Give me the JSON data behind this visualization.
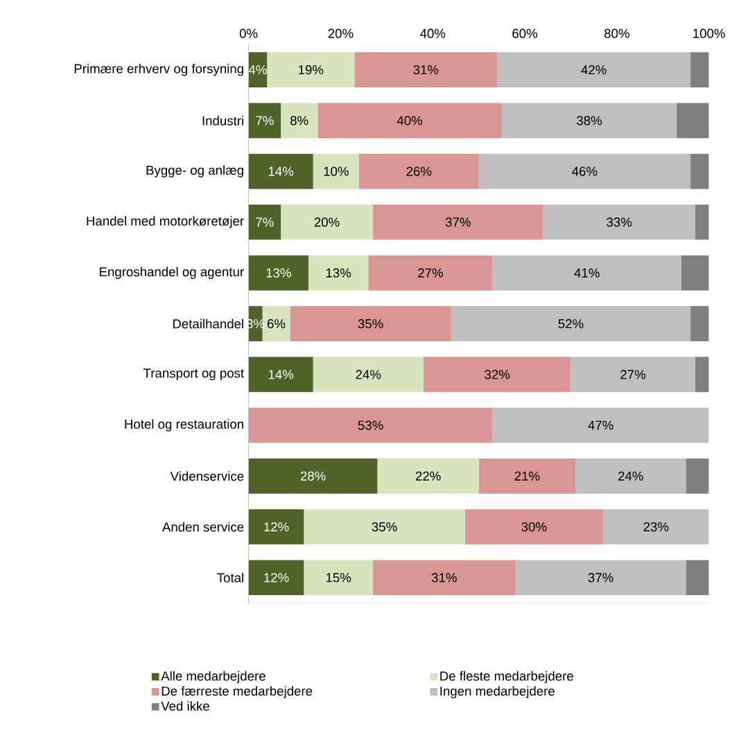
{
  "chart_data": {
    "type": "bar",
    "orientation": "horizontal",
    "stacked": true,
    "legend": "bottom",
    "xlim": [
      0,
      100
    ],
    "xticks": [
      {
        "value": 0,
        "label": "0%"
      },
      {
        "value": 20,
        "label": "20%"
      },
      {
        "value": 40,
        "label": "40%"
      },
      {
        "value": 60,
        "label": "60%"
      },
      {
        "value": 80,
        "label": "80%"
      },
      {
        "value": 100,
        "label": "100%"
      }
    ],
    "categories": [
      "Primære erhverv og forsyning",
      "Industri",
      "Bygge- og anlæg",
      "Handel med motorkøretøjer",
      "Engroshandel og agentur",
      "Detailhandel",
      "Transport og post",
      "Hotel og restauration",
      "Videnservice",
      "Anden service",
      "Total"
    ],
    "series": [
      {
        "name": "Alle medarbejdere",
        "color": "#4f6228",
        "values": [
          4,
          7,
          14,
          7,
          13,
          3,
          14,
          0,
          28,
          12,
          12
        ],
        "value_labels": [
          "4%",
          "7%",
          "14%",
          "7%",
          "13%",
          "3%",
          "14%",
          null,
          "28%",
          "12%",
          "12%"
        ]
      },
      {
        "name": "De fleste medarbejdere",
        "color": "#d7e4bd",
        "values": [
          19,
          8,
          10,
          20,
          13,
          6,
          24,
          0,
          22,
          35,
          15
        ],
        "value_labels": [
          "19%",
          "8%",
          "10%",
          "20%",
          "13%",
          "6%",
          "24%",
          null,
          "22%",
          "35%",
          "15%"
        ]
      },
      {
        "name": "De færreste medarbejdere",
        "color": "#d99694",
        "values": [
          31,
          40,
          26,
          37,
          27,
          35,
          32,
          53,
          21,
          30,
          31
        ],
        "value_labels": [
          "31%",
          "40%",
          "26%",
          "37%",
          "27%",
          "35%",
          "32%",
          "53%",
          "21%",
          "30%",
          "31%"
        ]
      },
      {
        "name": "Ingen medarbejdere",
        "color": "#bfbfbf",
        "values": [
          42,
          38,
          46,
          33,
          41,
          52,
          27,
          47,
          24,
          23,
          37
        ],
        "value_labels": [
          "42%",
          "38%",
          "46%",
          "33%",
          "41%",
          "52%",
          "27%",
          "47%",
          "24%",
          "23%",
          "37%"
        ]
      },
      {
        "name": "Ved ikke",
        "color": "#7f7f7f",
        "values": [
          4,
          7,
          4,
          3,
          6,
          4,
          3,
          0,
          5,
          0,
          5
        ]
      }
    ]
  }
}
